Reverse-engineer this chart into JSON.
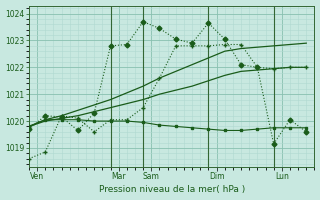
{
  "bg_color": "#c8e8e0",
  "grid_color_minor": "#b0d8d0",
  "grid_color_major": "#88c0b0",
  "line_color": "#1a5c1a",
  "vline_color": "#336633",
  "title": "Pression niveau de la mer( hPa )",
  "ylim": [
    1018.3,
    1024.3
  ],
  "yticks": [
    1019,
    1020,
    1021,
    1022,
    1023,
    1024
  ],
  "xlim": [
    0,
    17.5
  ],
  "day_labels": [
    "Ven",
    "Mar",
    "Sam",
    "Dim",
    "Lun"
  ],
  "day_positions": [
    0.5,
    5.5,
    7.5,
    11.5,
    15.5
  ],
  "vline_positions": [
    5.0,
    7.0,
    11.0,
    15.0
  ],
  "n_points": 18,
  "series_flat_x": [
    0,
    1,
    2,
    3,
    4,
    5,
    6,
    7,
    8,
    9,
    10,
    11,
    12,
    13,
    14,
    15,
    16,
    17
  ],
  "series_flat_y": [
    1019.8,
    1020.05,
    1020.05,
    1020.05,
    1020.0,
    1020.0,
    1020.0,
    1019.95,
    1019.85,
    1019.8,
    1019.75,
    1019.7,
    1019.65,
    1019.65,
    1019.7,
    1019.75,
    1019.75,
    1019.75
  ],
  "series_trend1_x": [
    0,
    1,
    2,
    3,
    4,
    5,
    6,
    7,
    8,
    9,
    10,
    11,
    12,
    13,
    14,
    15,
    16,
    17
  ],
  "series_trend1_y": [
    1019.8,
    1020.0,
    1020.1,
    1020.2,
    1020.35,
    1020.5,
    1020.65,
    1020.8,
    1021.0,
    1021.15,
    1021.3,
    1021.5,
    1021.7,
    1021.85,
    1021.9,
    1021.95,
    1022.0,
    1022.0
  ],
  "series_trend2_x": [
    0,
    1,
    2,
    3,
    4,
    5,
    6,
    7,
    8,
    9,
    10,
    11,
    12,
    13,
    14,
    15,
    16,
    17
  ],
  "series_trend2_y": [
    1019.8,
    1020.05,
    1020.2,
    1020.4,
    1020.6,
    1020.8,
    1021.05,
    1021.3,
    1021.6,
    1021.85,
    1022.1,
    1022.35,
    1022.6,
    1022.7,
    1022.75,
    1022.8,
    1022.85,
    1022.9
  ],
  "series_volatile_x": [
    0,
    1,
    2,
    3,
    4,
    5,
    6,
    7,
    8,
    9,
    10,
    11,
    12,
    13,
    14,
    15,
    16,
    17
  ],
  "series_volatile_y": [
    1018.6,
    1018.85,
    1020.2,
    1020.1,
    1019.6,
    1020.05,
    1020.05,
    1020.5,
    1021.6,
    1022.8,
    1022.8,
    1022.8,
    1022.85,
    1022.85,
    1022.0,
    1021.95,
    1022.0,
    1022.0
  ],
  "series_peaky_x": [
    0,
    1,
    2,
    3,
    4,
    5,
    6,
    7,
    8,
    9,
    10,
    11,
    12,
    13,
    14,
    15,
    16,
    17
  ],
  "series_peaky_y": [
    1019.7,
    1020.2,
    1020.15,
    1019.65,
    1020.3,
    1022.8,
    1022.85,
    1023.7,
    1023.45,
    1023.05,
    1022.9,
    1023.65,
    1023.05,
    1022.1,
    1022.0,
    1019.15,
    1020.05,
    1019.6
  ]
}
